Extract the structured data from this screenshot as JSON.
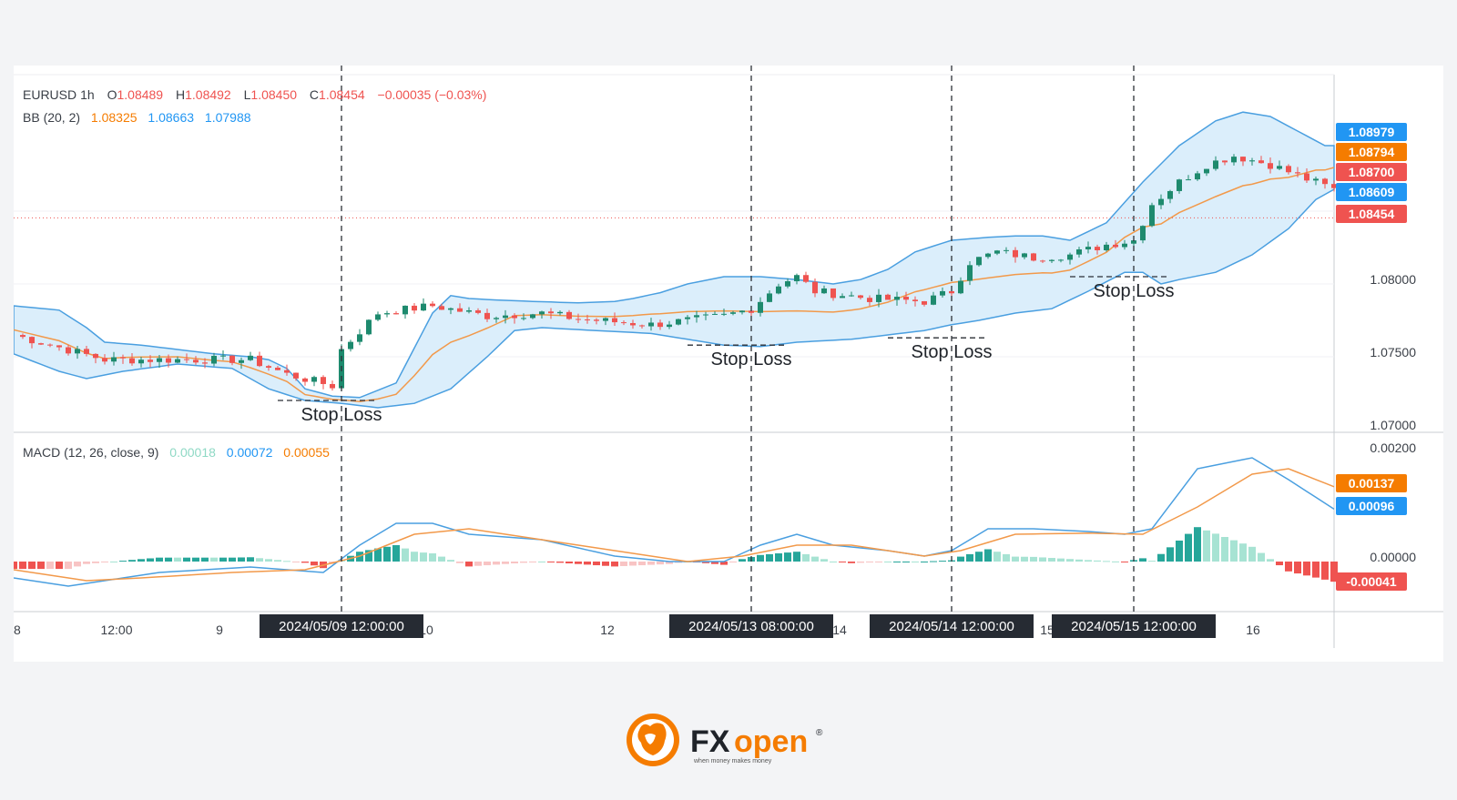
{
  "header": {
    "symbol": "EURUSD",
    "interval": "1h",
    "o_label": "O",
    "o_value": "1.08489",
    "h_label": "H",
    "h_value": "1.08492",
    "l_label": "L",
    "l_value": "1.08450",
    "c_label": "C",
    "c_value": "1.08454",
    "change": "−0.00035 (−0.03%)"
  },
  "bb_legend": {
    "label": "BB (20, 2)",
    "basis": "1.08325",
    "upper": "1.08663",
    "lower": "1.07988"
  },
  "macd_legend": {
    "label": "MACD (12, 26, close, 9)",
    "histogram": "0.00018",
    "macd": "0.00072",
    "signal": "0.00055"
  },
  "colors": {
    "up": "#26a69a",
    "up_dark": "#1e8a6e",
    "down": "#ef5350",
    "bb_line": "#4a9fe0",
    "bb_fill": "#dbeefb",
    "basis": "#f2994a",
    "macd_line": "#4a9fe0",
    "signal_line": "#f2994a",
    "hist_up_strong": "#26a69a",
    "hist_up_weak": "#a7e3d3",
    "hist_down_strong": "#ef5350",
    "hist_down_weak": "#f8c4c4",
    "badge_blue": "#2196f3",
    "badge_orange": "#f57c00",
    "badge_red": "#ef5350",
    "date_badge": "#262b33"
  },
  "price_badges": [
    {
      "value": "1.08979",
      "color": "blue"
    },
    {
      "value": "1.08794",
      "color": "orange"
    },
    {
      "value": "1.08700",
      "color": "red"
    },
    {
      "value": "1.08609",
      "color": "blue"
    },
    {
      "value": "1.08454",
      "color": "red"
    }
  ],
  "macd_badges": [
    {
      "value": "0.00137",
      "color": "orange"
    },
    {
      "value": "0.00096",
      "color": "blue"
    },
    {
      "value": "-0.00041",
      "color": "red"
    }
  ],
  "annotations": {
    "stop_loss_label": "Stop Loss",
    "entry_dates": [
      "2024/05/09  12:00:00",
      "2024/05/13  08:00:00",
      "2024/05/14  12:00:00",
      "2024/05/15  12:00:00"
    ]
  },
  "branding": {
    "name_fx": "FX",
    "name_open": "open",
    "registered": "®",
    "tagline": "when money makes money"
  },
  "chart_data": [
    {
      "type": "candlestick",
      "title": "",
      "symbol": "EURUSD",
      "interval": "1h",
      "ylim": [
        1.07,
        1.091
      ],
      "y_ticks": [
        "1.07000",
        "1.07500",
        "1.08000"
      ],
      "x_ticks": [
        "8",
        "12:00",
        "9",
        "10",
        "12",
        "14",
        "15",
        "16"
      ],
      "current_price": 1.08454,
      "bollinger_upper": [
        [
          0,
          1.0785
        ],
        [
          5,
          1.0782
        ],
        [
          8,
          1.077
        ],
        [
          10,
          1.076
        ],
        [
          14,
          1.0758
        ],
        [
          18,
          1.0755
        ],
        [
          22,
          1.0752
        ],
        [
          26,
          1.075
        ],
        [
          28,
          1.0748
        ],
        [
          30,
          1.0742
        ],
        [
          32,
          1.0728
        ],
        [
          35,
          1.0723
        ],
        [
          38,
          1.0722
        ],
        [
          42,
          1.0732
        ],
        [
          46,
          1.078
        ],
        [
          48,
          1.0792
        ],
        [
          50,
          1.079
        ],
        [
          53,
          1.0789
        ],
        [
          57,
          1.0788
        ],
        [
          62,
          1.0787
        ],
        [
          66,
          1.0788
        ],
        [
          68,
          1.079
        ],
        [
          71,
          1.0794
        ],
        [
          74,
          1.08
        ],
        [
          78,
          1.0805
        ],
        [
          82,
          1.0805
        ],
        [
          86,
          1.0803
        ],
        [
          90,
          1.08
        ],
        [
          93,
          1.0803
        ],
        [
          96,
          1.081
        ],
        [
          99,
          1.0822
        ],
        [
          103,
          1.083
        ],
        [
          107,
          1.0832
        ],
        [
          110,
          1.0833
        ],
        [
          113,
          1.0833
        ],
        [
          116,
          1.083
        ],
        [
          120,
          1.0842
        ],
        [
          124,
          1.087
        ],
        [
          128,
          1.0895
        ],
        [
          132,
          1.0912
        ],
        [
          135,
          1.0918
        ],
        [
          138,
          1.0915
        ],
        [
          141,
          1.0905
        ],
        [
          144,
          1.0895
        ]
      ],
      "bollinger_lower_note": "plotted as a single closed band outline",
      "stop_loss_levels": [
        1.072,
        1.0758,
        1.0763,
        1.0805
      ],
      "entry_x": [
        36,
        81,
        103,
        123
      ],
      "macd_ylim": [
        -0.0006,
        0.0022
      ],
      "macd_y_ticks": [
        "0.00200",
        "0.00000"
      ]
    }
  ]
}
